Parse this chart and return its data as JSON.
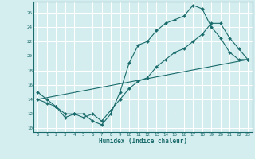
{
  "xlabel": "Humidex (Indice chaleur)",
  "bg_color": "#d4edef",
  "line_color": "#1a6b6b",
  "grid_color": "#ffffff",
  "xlim": [
    -0.5,
    23.5
  ],
  "ylim": [
    9.5,
    27.5
  ],
  "yticks": [
    10,
    12,
    14,
    16,
    18,
    20,
    22,
    24,
    26
  ],
  "xticks": [
    0,
    1,
    2,
    3,
    4,
    5,
    6,
    7,
    8,
    9,
    10,
    11,
    12,
    13,
    14,
    15,
    16,
    17,
    18,
    19,
    20,
    21,
    22,
    23
  ],
  "line1_x": [
    0,
    1,
    2,
    3,
    4,
    5,
    6,
    7,
    8,
    9,
    10,
    11,
    12,
    13,
    14,
    15,
    16,
    17,
    18,
    19,
    20,
    21,
    22,
    23
  ],
  "line1_y": [
    15.0,
    14.0,
    13.0,
    12.0,
    12.0,
    12.0,
    11.0,
    10.5,
    12.0,
    15.0,
    19.0,
    21.5,
    22.0,
    23.5,
    24.5,
    25.0,
    25.5,
    27.0,
    26.5,
    24.0,
    22.5,
    20.5,
    19.5,
    19.5
  ],
  "line2_x": [
    0,
    1,
    2,
    3,
    4,
    5,
    6,
    7,
    8,
    9,
    10,
    11,
    12,
    13,
    14,
    15,
    16,
    17,
    18,
    19,
    20,
    21,
    22,
    23
  ],
  "line2_y": [
    14.0,
    13.5,
    13.0,
    11.5,
    12.0,
    11.5,
    12.0,
    11.0,
    12.5,
    14.0,
    15.5,
    16.5,
    17.0,
    18.5,
    19.5,
    20.5,
    21.0,
    22.0,
    23.0,
    24.5,
    24.5,
    22.5,
    21.0,
    19.5
  ],
  "line3_x": [
    0,
    23
  ],
  "line3_y": [
    14.0,
    19.5
  ]
}
